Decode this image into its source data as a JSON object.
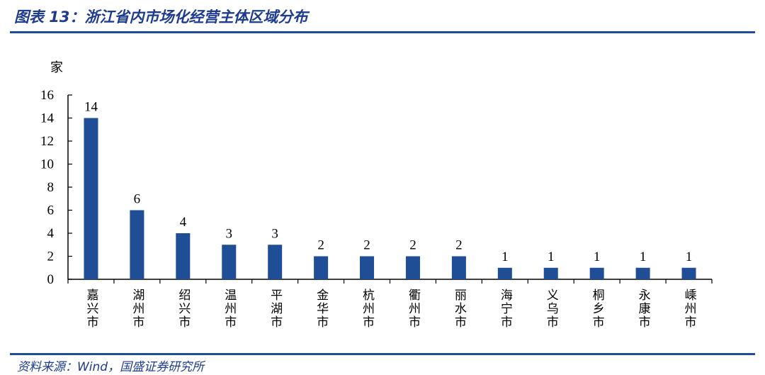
{
  "header": {
    "title": "图表 13：浙江省内市场化经营主体区域分布"
  },
  "footer": {
    "source": "资料来源：Wind，国盛证券研究所"
  },
  "colors": {
    "bar": "#1f4e96",
    "title": "#1f3c8c",
    "rule": "#1f4e96"
  },
  "chart_data": {
    "type": "bar",
    "title": "",
    "ylabel": "家",
    "xlabel": "",
    "ylim": [
      0,
      16
    ],
    "yticks": [
      0,
      2,
      4,
      6,
      8,
      10,
      12,
      14,
      16
    ],
    "grid": false,
    "legend": "none",
    "categories": [
      "嘉兴市",
      "湖州市",
      "绍兴市",
      "温州市",
      "平湖市",
      "金华市",
      "杭州市",
      "衢州市",
      "丽水市",
      "海宁市",
      "义乌市",
      "桐乡市",
      "永康市",
      "嵊州市"
    ],
    "values": [
      14,
      6,
      4,
      3,
      3,
      2,
      2,
      2,
      2,
      1,
      1,
      1,
      1,
      1
    ]
  }
}
